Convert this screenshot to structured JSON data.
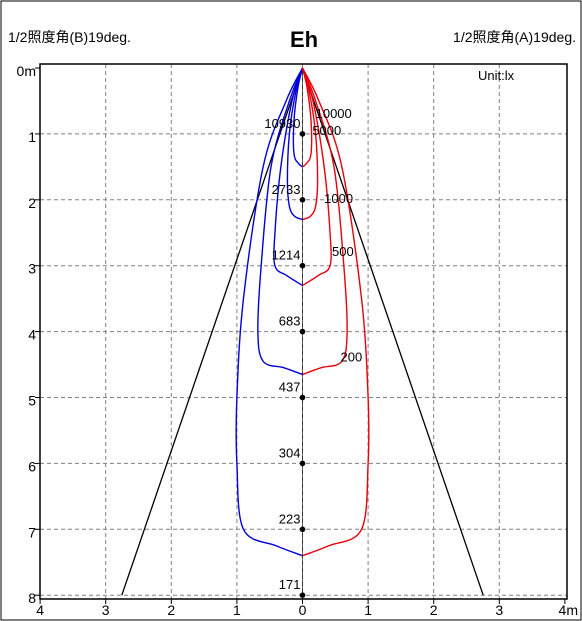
{
  "header": {
    "left_label": "1/2照度角(B)19deg.",
    "title": "Eh",
    "right_label": "1/2照度角(A)19deg."
  },
  "unit_label": "Unit:lx",
  "chart_data": {
    "type": "line",
    "title": "Eh",
    "x_ticks": [
      "4",
      "3",
      "2",
      "1",
      "0",
      "1",
      "2",
      "3",
      "4m"
    ],
    "y_ticks": [
      "0m",
      "1",
      "2",
      "3",
      "4",
      "5",
      "6",
      "7",
      "8"
    ],
    "xlim": [
      -4,
      4
    ],
    "ylim": [
      0,
      8
    ],
    "grid": true,
    "beam_half_angle_deg": {
      "A": 19,
      "B": 19
    },
    "center_illuminance": [
      {
        "distance": 1,
        "lux": "10930"
      },
      {
        "distance": 2,
        "lux": "2733"
      },
      {
        "distance": 3,
        "lux": "1214"
      },
      {
        "distance": 4,
        "lux": "683"
      },
      {
        "distance": 5,
        "lux": "437"
      },
      {
        "distance": 6,
        "lux": "304"
      },
      {
        "distance": 7,
        "lux": "223"
      },
      {
        "distance": 8,
        "lux": "171"
      }
    ],
    "iso_lux": {
      "A": [
        {
          "lux": "10000",
          "label_at": [
            0.2,
            0.76
          ],
          "points": [
            [
              0,
              0
            ],
            [
              0.07,
              0.3
            ],
            [
              0.13,
              0.8
            ],
            [
              0.13,
              1.3
            ],
            [
              0.06,
              1.45
            ],
            [
              0,
              1.5
            ]
          ]
        },
        {
          "lux": "5000",
          "label_at": [
            0.15,
            1.02
          ],
          "points": [
            [
              0,
              0
            ],
            [
              0.11,
              0.4
            ],
            [
              0.2,
              1.0
            ],
            [
              0.23,
              1.7
            ],
            [
              0.2,
              2.1
            ],
            [
              0.12,
              2.25
            ],
            [
              0,
              2.3
            ]
          ]
        },
        {
          "lux": "1000",
          "label_at": [
            0.33,
            2.05
          ],
          "points": [
            [
              0,
              0
            ],
            [
              0.16,
              0.5
            ],
            [
              0.33,
              1.5
            ],
            [
              0.42,
              2.5
            ],
            [
              0.42,
              3.0
            ],
            [
              0.24,
              3.15
            ],
            [
              0,
              3.3
            ]
          ]
        },
        {
          "lux": "500",
          "label_at": [
            0.45,
            2.85
          ],
          "points": [
            [
              0,
              0
            ],
            [
              0.2,
              0.5
            ],
            [
              0.48,
              1.5
            ],
            [
              0.63,
              3.0
            ],
            [
              0.68,
              4.0
            ],
            [
              0.6,
              4.45
            ],
            [
              0.28,
              4.55
            ],
            [
              0,
              4.65
            ]
          ]
        },
        {
          "lux": "200",
          "label_at": [
            0.58,
            4.45
          ],
          "points": [
            [
              0,
              0
            ],
            [
              0.25,
              0.5
            ],
            [
              0.6,
              1.5
            ],
            [
              0.9,
              3.5
            ],
            [
              1.0,
              5.0
            ],
            [
              1.0,
              6.0
            ],
            [
              0.9,
              7.0
            ],
            [
              0.4,
              7.25
            ],
            [
              0,
              7.4
            ]
          ]
        }
      ],
      "B": [
        {
          "lux": "10000",
          "points": [
            [
              0,
              0
            ],
            [
              -0.07,
              0.3
            ],
            [
              -0.13,
              0.8
            ],
            [
              -0.13,
              1.3
            ],
            [
              -0.06,
              1.45
            ],
            [
              0,
              1.5
            ]
          ]
        },
        {
          "lux": "5000",
          "points": [
            [
              0,
              0
            ],
            [
              -0.11,
              0.4
            ],
            [
              -0.2,
              1.0
            ],
            [
              -0.23,
              1.7
            ],
            [
              -0.2,
              2.1
            ],
            [
              -0.12,
              2.25
            ],
            [
              0,
              2.3
            ]
          ]
        },
        {
          "lux": "1000",
          "points": [
            [
              0,
              0
            ],
            [
              -0.16,
              0.5
            ],
            [
              -0.33,
              1.5
            ],
            [
              -0.42,
              2.5
            ],
            [
              -0.42,
              3.0
            ],
            [
              -0.24,
              3.15
            ],
            [
              0,
              3.3
            ]
          ]
        },
        {
          "lux": "500",
          "points": [
            [
              0,
              0
            ],
            [
              -0.2,
              0.5
            ],
            [
              -0.48,
              1.5
            ],
            [
              -0.63,
              3.0
            ],
            [
              -0.68,
              4.0
            ],
            [
              -0.6,
              4.45
            ],
            [
              -0.28,
              4.55
            ],
            [
              0,
              4.65
            ]
          ]
        },
        {
          "lux": "200",
          "points": [
            [
              0,
              0
            ],
            [
              -0.25,
              0.5
            ],
            [
              -0.6,
              1.5
            ],
            [
              -0.9,
              3.5
            ],
            [
              -1.0,
              5.0
            ],
            [
              -1.0,
              6.0
            ],
            [
              -0.9,
              7.0
            ],
            [
              -0.4,
              7.25
            ],
            [
              0,
              7.4
            ]
          ]
        }
      ]
    },
    "colors": {
      "A": "#e8000b",
      "B": "#0000dd",
      "beam": "#000000",
      "grid": "#808080"
    }
  }
}
